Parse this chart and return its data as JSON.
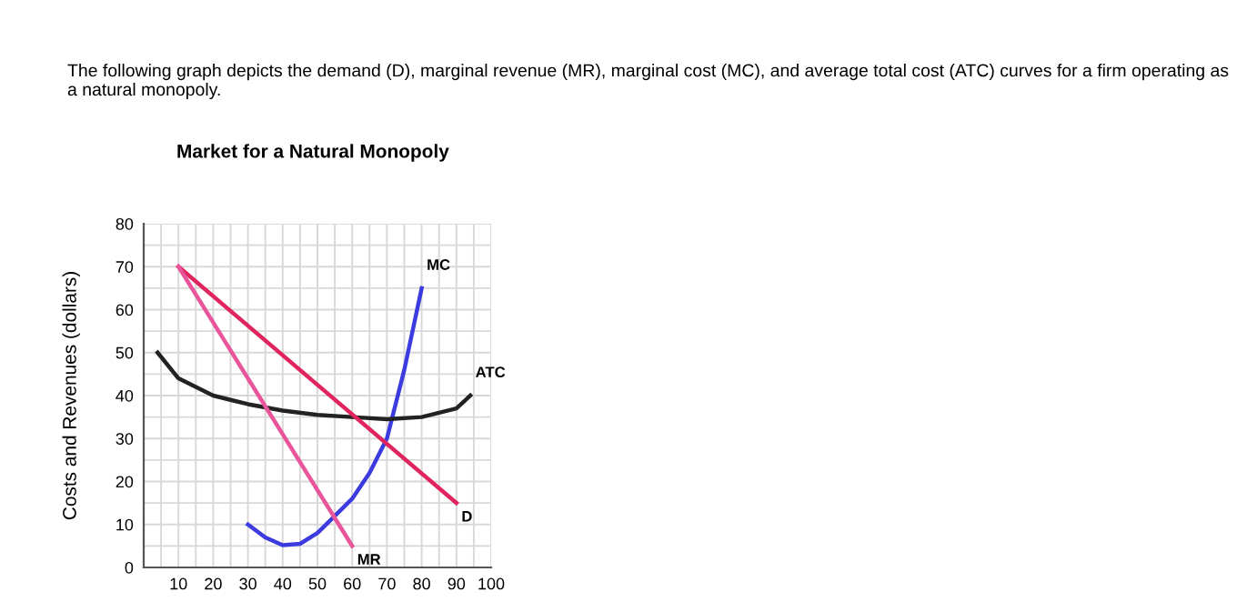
{
  "chart_data": {
    "type": "line",
    "title": "Market for a Natural Monopoly",
    "ylabel": "Costs and Revenues (dollars)",
    "annotations": [
      "The following graph depicts the demand (D), marginal revenue (MR), marginal cost (MC), and average total cost (ATC) curves for a firm operating as a natural monopoly."
    ],
    "xlim": [
      0,
      100
    ],
    "ylim": [
      0,
      80
    ],
    "xticks": [
      {
        "value": 5,
        "label": null
      },
      10,
      {
        "value": 15,
        "label": null
      },
      20,
      {
        "value": 25,
        "label": null
      },
      30,
      {
        "value": 35,
        "label": null
      },
      40,
      {
        "value": 45,
        "label": null
      },
      50,
      {
        "value": 55,
        "label": null
      },
      60,
      {
        "value": 65,
        "label": null
      },
      70,
      {
        "value": 75,
        "label": null
      },
      80,
      {
        "value": 85,
        "label": null
      },
      90,
      {
        "value": 95,
        "label": null
      },
      100
    ],
    "yticks": [
      0,
      {
        "value": 5,
        "label": null
      },
      10,
      {
        "value": 15,
        "label": null
      },
      20,
      {
        "value": 25,
        "label": null
      },
      30,
      {
        "value": 35,
        "label": null
      },
      40,
      {
        "value": 45,
        "label": null
      },
      50,
      {
        "value": 55,
        "label": null
      },
      60,
      {
        "value": 65,
        "label": null
      },
      70,
      {
        "value": 75,
        "label": null
      },
      80
    ],
    "grid": true,
    "legend": false,
    "marker": "none",
    "line_style": "solid",
    "series": [
      {
        "name": "MC",
        "color": "#3b3be0",
        "x": [
          30,
          35,
          40,
          45,
          50,
          55,
          60,
          65,
          70,
          75,
          80
        ],
        "values": [
          10,
          7,
          5.2,
          5.5,
          8,
          12,
          16,
          22,
          30,
          46,
          65
        ]
      },
      {
        "name": "ATC",
        "color": "#222222",
        "x": [
          4,
          10,
          20,
          30,
          40,
          50,
          60,
          70,
          80,
          90,
          94
        ],
        "values": [
          50,
          44,
          40,
          38,
          36.5,
          35.5,
          35,
          34.5,
          35,
          37,
          40
        ]
      },
      {
        "name": "D",
        "color": "#e0245e",
        "x": [
          10,
          90
        ],
        "values": [
          70,
          15
        ]
      },
      {
        "name": "MR",
        "color": "#e8559a",
        "x": [
          10,
          60
        ],
        "values": [
          70,
          5
        ]
      }
    ]
  }
}
